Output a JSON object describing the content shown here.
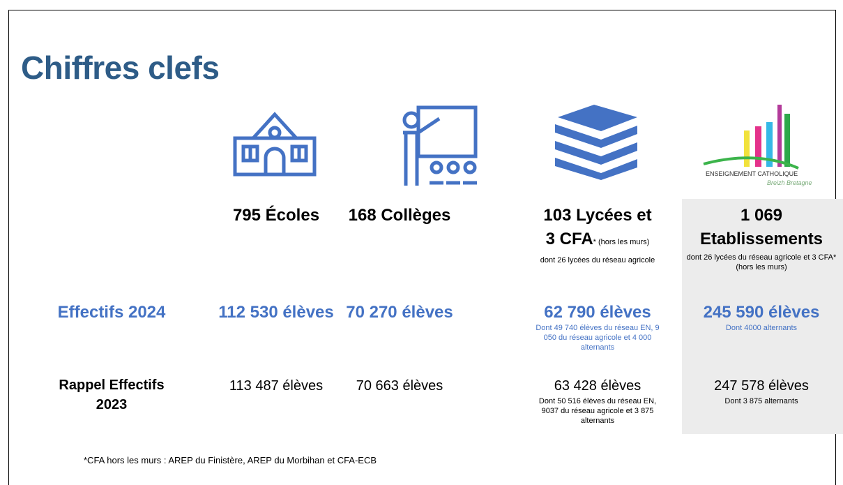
{
  "header": {
    "title": "Chiffres clefs"
  },
  "logo": {
    "name": "ENSEIGNEMENT CATHOLIQUE",
    "tagline": "Breizh Bretagne"
  },
  "columns": [
    {
      "heading": [
        "795 Écoles"
      ]
    },
    {
      "heading": [
        "168 Collèges"
      ]
    },
    {
      "heading": [
        "103 Lycées et",
        "3 CFA"
      ],
      "note": "* (hors les murs)",
      "sub": "dont 26 lycées du réseau agricole"
    },
    {
      "heading": [
        "1 069",
        "Etablissements"
      ],
      "sub": "dont 26 lycées du réseau agricole et 3 CFA* (hors les murs)"
    }
  ],
  "rows": [
    {
      "label": "Effectifs 2024",
      "cells": [
        {
          "main": "112 530 élèves"
        },
        {
          "main": "70 270 élèves"
        },
        {
          "main": "62 790 élèves",
          "sub": "Dont 49 740 élèves du réseau EN, 9 050 du réseau agricole et 4 000 alternants"
        },
        {
          "main": "245 590 élèves",
          "sub": "Dont 4000 alternants"
        }
      ]
    },
    {
      "label": "Rappel Effectifs 2023",
      "cells": [
        {
          "main": "113 487 élèves"
        },
        {
          "main": "70 663  élèves"
        },
        {
          "main": "63 428 élèves",
          "sub": "Dont 50 516 élèves du réseau EN, 9037 du réseau agricole et 3 875 alternants"
        },
        {
          "main": "247 578 élèves",
          "sub": "Dont 3 875 alternants"
        }
      ]
    }
  ],
  "footnote": "*CFA hors les murs : AREP du Finistère, AREP du Morbihan et CFA-ECB"
}
